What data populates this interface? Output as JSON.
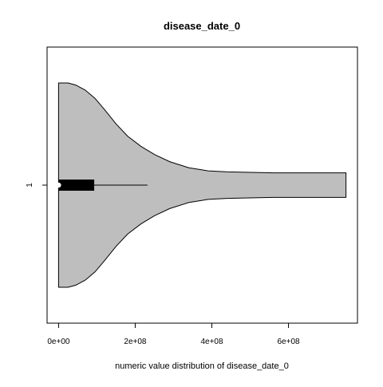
{
  "chart_data": {
    "type": "violin",
    "title": "disease_date_0",
    "xlabel": "numeric value distribution of disease_date_0",
    "ylabel": "",
    "orientation": "horizontal",
    "categories": [
      "1"
    ],
    "xlim": [
      -30000000,
      780000000
    ],
    "x_ticks": [
      {
        "value": 0,
        "label": "0e+00"
      },
      {
        "value": 200000000,
        "label": "2e+08"
      },
      {
        "value": 400000000,
        "label": "4e+08"
      },
      {
        "value": 600000000,
        "label": "6e+08"
      }
    ],
    "grid": false,
    "legend": "none",
    "violin": {
      "category": "1",
      "fill": "#bebebe",
      "stroke": "#000000",
      "density_profile": [
        {
          "x": 0,
          "w": 1.0
        },
        {
          "x": 10000000,
          "w": 1.0
        },
        {
          "x": 25000000,
          "w": 1.0
        },
        {
          "x": 45000000,
          "w": 0.98
        },
        {
          "x": 70000000,
          "w": 0.93
        },
        {
          "x": 95000000,
          "w": 0.85
        },
        {
          "x": 120000000,
          "w": 0.74
        },
        {
          "x": 150000000,
          "w": 0.6
        },
        {
          "x": 180000000,
          "w": 0.48
        },
        {
          "x": 215000000,
          "w": 0.38
        },
        {
          "x": 250000000,
          "w": 0.3
        },
        {
          "x": 290000000,
          "w": 0.23
        },
        {
          "x": 340000000,
          "w": 0.17
        },
        {
          "x": 390000000,
          "w": 0.14
        },
        {
          "x": 440000000,
          "w": 0.13
        },
        {
          "x": 500000000,
          "w": 0.125
        },
        {
          "x": 560000000,
          "w": 0.12
        },
        {
          "x": 650000000,
          "w": 0.12
        },
        {
          "x": 750000000,
          "w": 0.12
        }
      ],
      "box": {
        "q1": 0,
        "q3": 93000000,
        "whisker_low": 0,
        "whisker_high": 232000000,
        "median": 0
      }
    }
  }
}
